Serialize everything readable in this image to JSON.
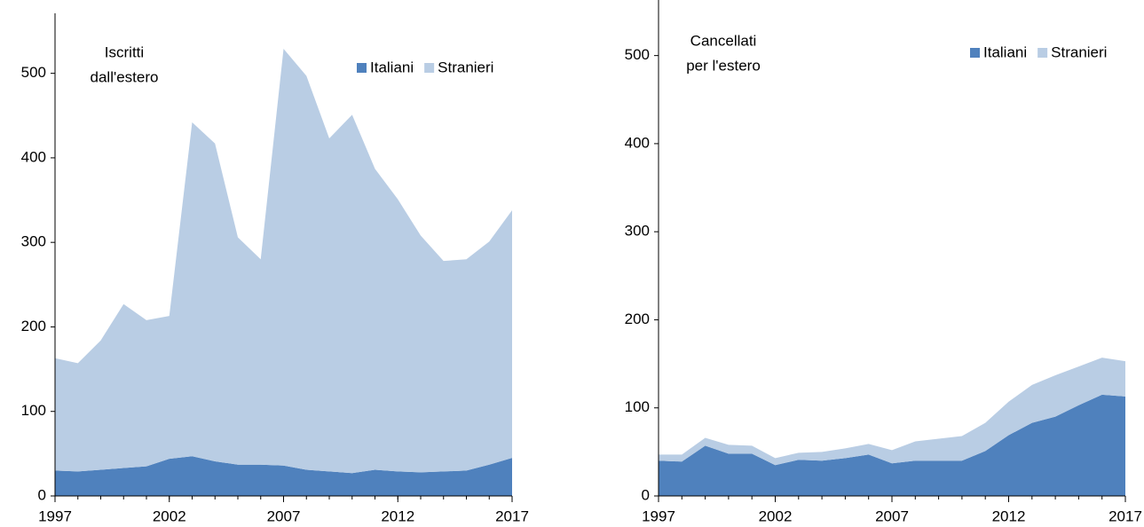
{
  "chart_data": [
    {
      "type": "stacked-area",
      "title": [
        "Iscritti",
        "dall'estero"
      ],
      "x": [
        1997,
        1998,
        1999,
        2000,
        2001,
        2002,
        2003,
        2004,
        2005,
        2006,
        2007,
        2008,
        2009,
        2010,
        2011,
        2012,
        2013,
        2014,
        2015,
        2016,
        2017
      ],
      "series": [
        {
          "name": "Italiani",
          "color": "#4f81bd",
          "values": [
            30,
            29,
            31,
            33,
            35,
            44,
            47,
            41,
            37,
            37,
            36,
            31,
            29,
            27,
            31,
            29,
            28,
            29,
            30,
            37,
            45
          ]
        },
        {
          "name": "Stranieri",
          "color": "#b9cde4",
          "values": [
            133,
            128,
            153,
            194,
            173,
            169,
            395,
            376,
            269,
            243,
            493,
            466,
            394,
            424,
            356,
            322,
            280,
            249,
            250,
            264,
            293
          ]
        }
      ],
      "xlim": [
        1997,
        2017
      ],
      "xticks": [
        1997,
        2002,
        2007,
        2012,
        2017
      ],
      "ylim": [
        0,
        550
      ],
      "yticks": [
        0,
        100,
        200,
        300,
        400,
        500
      ]
    },
    {
      "type": "stacked-area",
      "title": [
        "Cancellati",
        "per l'estero"
      ],
      "x": [
        1997,
        1998,
        1999,
        2000,
        2001,
        2002,
        2003,
        2004,
        2005,
        2006,
        2007,
        2008,
        2009,
        2010,
        2011,
        2012,
        2013,
        2014,
        2015,
        2016,
        2017
      ],
      "series": [
        {
          "name": "Italiani",
          "color": "#4f81bd",
          "values": [
            40,
            39,
            57,
            48,
            48,
            35,
            41,
            40,
            43,
            47,
            37,
            40,
            40,
            40,
            51,
            69,
            83,
            90,
            103,
            115,
            113
          ]
        },
        {
          "name": "Stranieri",
          "color": "#b9cde4",
          "values": [
            7,
            8,
            9,
            10,
            9,
            8,
            8,
            10,
            11,
            12,
            15,
            22,
            25,
            28,
            32,
            38,
            43,
            47,
            44,
            42,
            40
          ]
        }
      ],
      "xlim": [
        1997,
        2017
      ],
      "xticks": [
        1997,
        2002,
        2007,
        2012,
        2017
      ],
      "ylim": [
        0,
        550
      ],
      "yticks": [
        0,
        100,
        200,
        300,
        400,
        500
      ]
    }
  ]
}
